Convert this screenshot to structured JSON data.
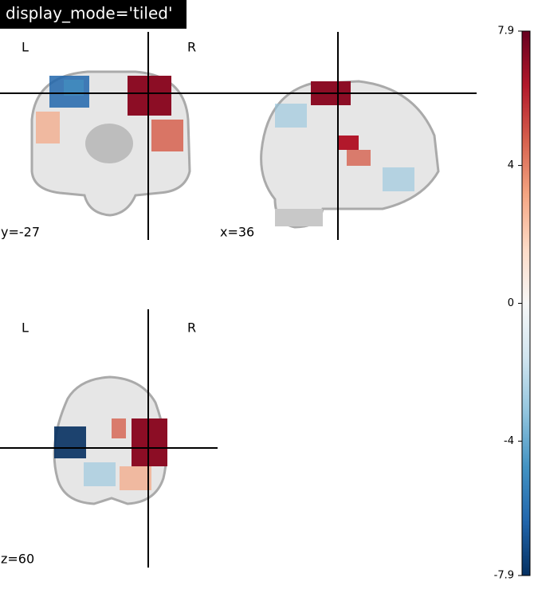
{
  "title": "display_mode='tiled'",
  "panels": [
    {
      "left": "L",
      "right": "R",
      "coord": "y=-27"
    },
    {
      "coord": "x=36"
    },
    {
      "left": "L",
      "right": "R",
      "coord": "z=60"
    }
  ],
  "colorbar": {
    "lim": [
      -7.9,
      7.9
    ],
    "ticks": [
      7.9,
      4,
      0,
      -4,
      -7.9
    ],
    "colors": [
      "#053061",
      "#2166ac",
      "#4393c3",
      "#92c5de",
      "#d1e5f0",
      "#f7f7f7",
      "#fddbc7",
      "#f4a582",
      "#d6604d",
      "#b2182b",
      "#67001f"
    ]
  }
}
